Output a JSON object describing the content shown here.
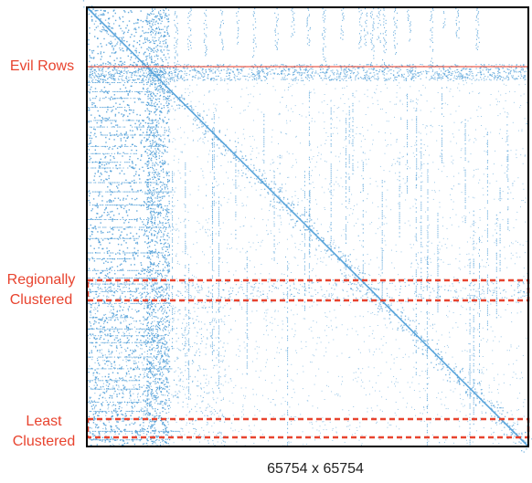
{
  "matrix": {
    "caption": "65754 x 65754",
    "dot_color": "#4a9bd6",
    "diagonal_color": "#5aa5db",
    "highlight_color": "#e8432e",
    "frame_color": "#000000"
  },
  "annotations": {
    "evil_rows": "Evil Rows",
    "regionally_clustered_line1": "Regionally",
    "regionally_clustered_line2": "Clustered",
    "least_clustered_line1": "Least",
    "least_clustered_line2": "Clustered"
  }
}
